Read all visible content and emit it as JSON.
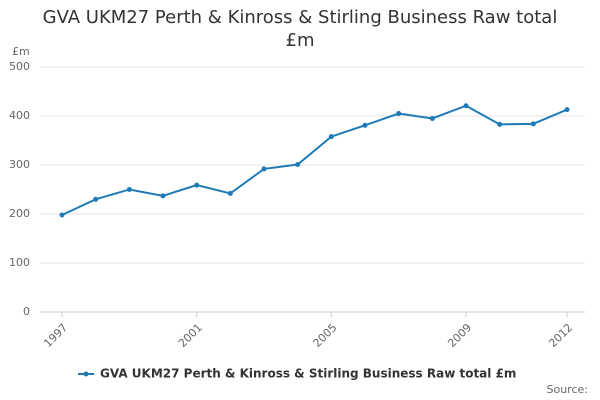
{
  "chart_data": {
    "type": "line",
    "title": "GVA UKM27 Perth & Kinross & Stirling Business Raw total £m",
    "y_label": "£m",
    "source": "Source:",
    "x": [
      1997,
      1998,
      1999,
      2000,
      2001,
      2002,
      2003,
      2004,
      2005,
      2006,
      2007,
      2008,
      2009,
      2010,
      2011,
      2012
    ],
    "series": [
      {
        "name": "GVA UKM27 Perth & Kinross & Stirling Business Raw total £m",
        "color": "#1f7bb6",
        "values": [
          198,
          230,
          250,
          237,
          259,
          242,
          292,
          301,
          358,
          381,
          405,
          395,
          421,
          383,
          384,
          413
        ]
      }
    ],
    "xlim": [
      1997,
      2012
    ],
    "xticks": [
      1997,
      2001,
      2005,
      2009,
      2012
    ],
    "ylim": [
      0,
      500
    ],
    "yticks": [
      0,
      100,
      200,
      300,
      400,
      500
    ],
    "grid": true
  }
}
